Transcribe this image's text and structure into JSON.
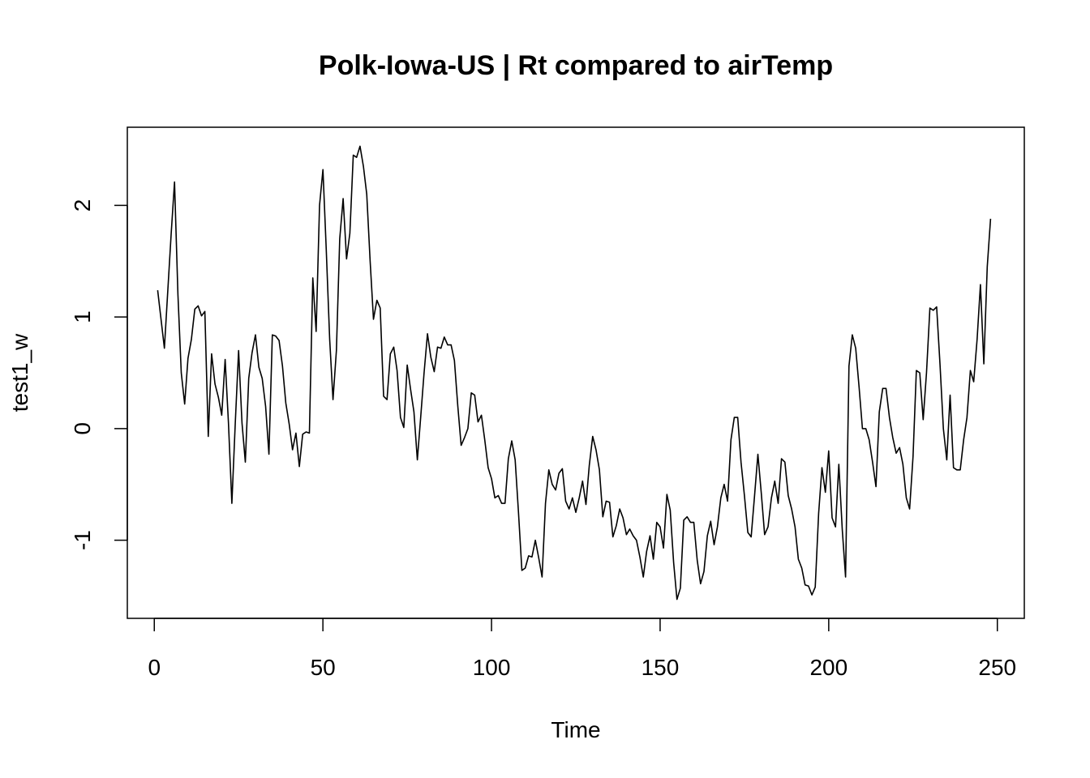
{
  "chart_data": {
    "type": "line",
    "title": "Polk-Iowa-US | Rt compared to airTemp",
    "xlabel": "Time",
    "ylabel": "test1_w",
    "xlim": [
      -8,
      258
    ],
    "ylim": [
      -1.7,
      2.7
    ],
    "xticks": [
      0,
      50,
      100,
      150,
      200,
      250
    ],
    "yticks": [
      -1,
      0,
      1,
      2
    ],
    "grid": false,
    "legend": "none",
    "line_color": "#000000",
    "series": [
      {
        "name": "",
        "x": [
          1,
          3,
          5,
          6,
          7,
          8,
          9,
          10,
          11,
          12,
          13,
          14,
          15,
          16,
          17,
          18,
          19,
          20,
          21,
          22,
          23,
          24,
          25,
          26,
          27,
          28,
          29,
          30,
          31,
          32,
          33,
          34,
          35,
          36,
          37,
          38,
          39,
          40,
          41,
          42,
          43,
          44,
          45,
          46,
          47,
          48,
          49,
          50,
          51,
          52,
          53,
          54,
          55,
          56,
          57,
          58,
          59,
          60,
          61,
          62,
          63,
          64,
          65,
          66,
          67,
          68,
          69,
          70,
          71,
          72,
          73,
          74,
          75,
          76,
          77,
          78,
          79,
          80,
          81,
          82,
          83,
          84,
          85,
          86,
          87,
          88,
          89,
          90,
          91,
          92,
          93,
          94,
          95,
          96,
          97,
          98,
          99,
          100,
          101,
          102,
          103,
          104,
          105,
          106,
          107,
          108,
          109,
          110,
          111,
          112,
          113,
          114,
          115,
          116,
          117,
          118,
          119,
          120,
          121,
          122,
          123,
          124,
          125,
          126,
          127,
          128,
          129,
          130,
          131,
          132,
          133,
          134,
          135,
          136,
          137,
          138,
          139,
          140,
          141,
          142,
          143,
          144,
          145,
          146,
          147,
          148,
          149,
          150,
          151,
          152,
          153,
          154,
          155,
          156,
          157,
          158,
          159,
          160,
          161,
          162,
          163,
          164,
          165,
          166,
          167,
          168,
          169,
          170,
          171,
          172,
          173,
          174,
          175,
          176,
          177,
          178,
          179,
          180,
          181,
          182,
          183,
          184,
          185,
          186,
          187,
          188,
          189,
          190,
          191,
          192,
          193,
          194,
          195,
          196,
          197,
          198,
          199,
          200,
          201,
          202,
          203,
          204,
          205,
          206,
          207,
          208,
          209,
          210,
          211,
          212,
          213,
          214,
          215,
          216,
          217,
          218,
          219,
          220,
          221,
          222,
          223,
          224,
          225,
          226,
          227,
          228,
          229,
          230,
          231,
          232,
          233,
          234,
          235,
          236,
          237,
          238,
          239,
          240,
          241,
          242,
          243,
          244,
          245,
          246,
          247,
          248
        ],
        "values": [
          1.24,
          0.72,
          1.75,
          2.21,
          1.2,
          0.5,
          0.22,
          0.63,
          0.8,
          1.07,
          1.1,
          1.01,
          1.05,
          -0.07,
          0.67,
          0.4,
          0.28,
          0.12,
          0.62,
          0.05,
          -0.67,
          0.05,
          0.7,
          0.05,
          -0.3,
          0.45,
          0.68,
          0.84,
          0.55,
          0.45,
          0.2,
          -0.23,
          0.84,
          0.83,
          0.79,
          0.56,
          0.23,
          0.04,
          -0.19,
          -0.04,
          -0.34,
          -0.05,
          -0.03,
          -0.04,
          1.35,
          0.87,
          2.0,
          2.32,
          1.6,
          0.8,
          0.26,
          0.7,
          1.7,
          2.06,
          1.52,
          1.75,
          2.45,
          2.43,
          2.53,
          2.35,
          2.1,
          1.5,
          0.98,
          1.15,
          1.08,
          0.29,
          0.26,
          0.67,
          0.73,
          0.52,
          0.1,
          0.01,
          0.57,
          0.35,
          0.15,
          -0.28,
          0.1,
          0.5,
          0.85,
          0.64,
          0.51,
          0.73,
          0.72,
          0.82,
          0.75,
          0.75,
          0.61,
          0.2,
          -0.15,
          -0.08,
          0.0,
          0.32,
          0.3,
          0.06,
          0.12,
          -0.1,
          -0.35,
          -0.45,
          -0.62,
          -0.6,
          -0.67,
          -0.67,
          -0.27,
          -0.11,
          -0.28,
          -0.75,
          -1.27,
          -1.25,
          -1.14,
          -1.15,
          -1.0,
          -1.16,
          -1.33,
          -0.67,
          -0.37,
          -0.5,
          -0.55,
          -0.4,
          -0.36,
          -0.65,
          -0.72,
          -0.62,
          -0.75,
          -0.62,
          -0.47,
          -0.68,
          -0.33,
          -0.07,
          -0.19,
          -0.37,
          -0.79,
          -0.65,
          -0.66,
          -0.97,
          -0.87,
          -0.72,
          -0.8,
          -0.95,
          -0.9,
          -0.96,
          -1.0,
          -1.15,
          -1.33,
          -1.1,
          -0.96,
          -1.17,
          -0.84,
          -0.88,
          -1.07,
          -0.59,
          -0.73,
          -1.2,
          -1.53,
          -1.43,
          -0.82,
          -0.79,
          -0.84,
          -0.84,
          -1.18,
          -1.39,
          -1.28,
          -0.96,
          -0.83,
          -1.04,
          -0.88,
          -0.62,
          -0.5,
          -0.65,
          -0.1,
          0.1,
          0.1,
          -0.3,
          -0.6,
          -0.93,
          -0.97,
          -0.6,
          -0.23,
          -0.58,
          -0.95,
          -0.88,
          -0.62,
          -0.47,
          -0.67,
          -0.27,
          -0.3,
          -0.6,
          -0.72,
          -0.88,
          -1.17,
          -1.25,
          -1.4,
          -1.41,
          -1.49,
          -1.42,
          -0.76,
          -0.35,
          -0.57,
          -0.2,
          -0.8,
          -0.88,
          -0.32,
          -0.9,
          -1.33,
          0.56,
          0.84,
          0.72,
          0.37,
          0.0,
          0.0,
          -0.1,
          -0.3,
          -0.52,
          0.15,
          0.36,
          0.36,
          0.1,
          -0.08,
          -0.22,
          -0.17,
          -0.32,
          -0.62,
          -0.72,
          -0.25,
          0.52,
          0.5,
          0.08,
          0.5,
          1.08,
          1.06,
          1.09,
          0.57,
          0.0,
          -0.28,
          0.3,
          -0.35,
          -0.37,
          -0.37,
          -0.1,
          0.1,
          0.52,
          0.42,
          0.8,
          1.29,
          0.58,
          1.45,
          1.88
        ]
      }
    ]
  }
}
